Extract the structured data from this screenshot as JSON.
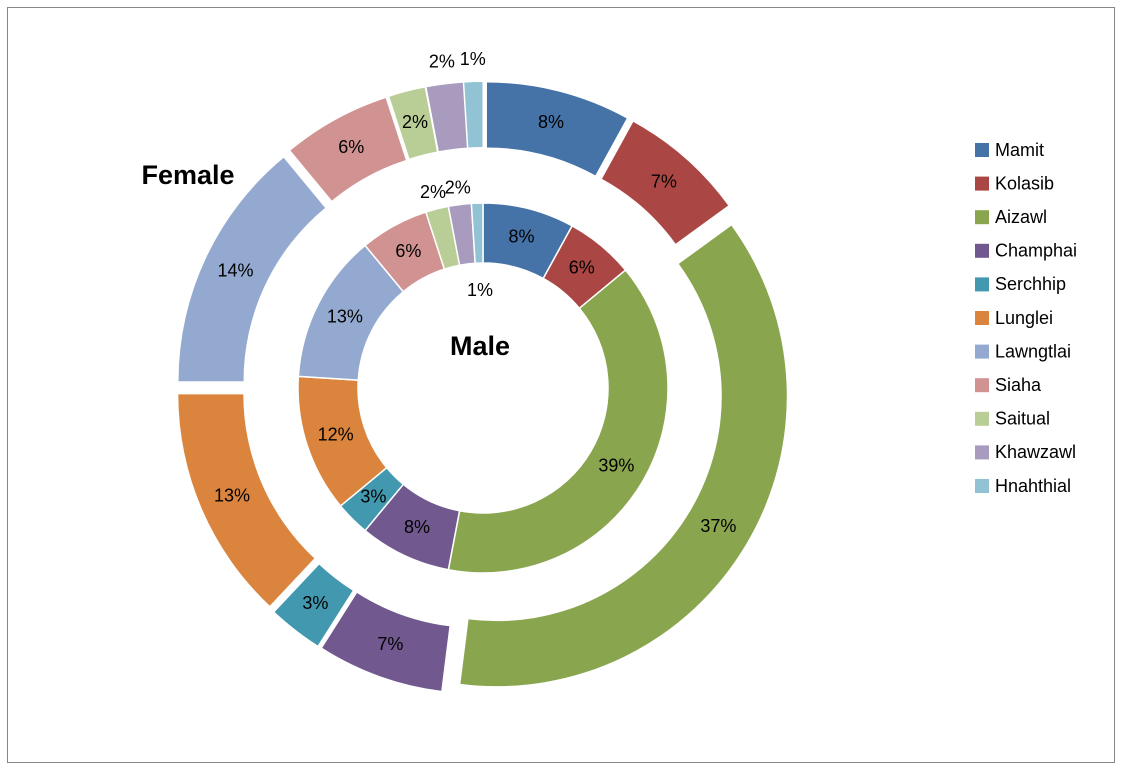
{
  "chart_data": {
    "type": "doughnut",
    "categories": [
      "Mamit",
      "Kolasib",
      "Aizawl",
      "Champhai",
      "Serchhip",
      "Lunglei",
      "Lawngtlai",
      "Siaha",
      "Saitual",
      "Khawzawl",
      "Hnahthial"
    ],
    "colors": [
      "#4572a7",
      "#aa4643",
      "#89a54e",
      "#71588f",
      "#4198af",
      "#db843d",
      "#93a9cf",
      "#d19392",
      "#b9cd96",
      "#a99bbd",
      "#91c3d5"
    ],
    "series": [
      {
        "name": "Male",
        "values": [
          8,
          6,
          39,
          8,
          3,
          12,
          13,
          6,
          2,
          2,
          1
        ],
        "value_labels": [
          "8%",
          "6%",
          "39%",
          "8%",
          "3%",
          "12%",
          "13%",
          "6%",
          "2%",
          "2%",
          "1%"
        ]
      },
      {
        "name": "Female",
        "values": [
          8,
          7,
          37,
          7,
          3,
          13,
          14,
          6,
          2,
          2,
          1
        ],
        "value_labels": [
          "8%",
          "7%",
          "37%",
          "7%",
          "3%",
          "13%",
          "14%",
          "6%",
          "2%",
          "2%",
          "1%"
        ]
      }
    ],
    "legend": "right"
  }
}
